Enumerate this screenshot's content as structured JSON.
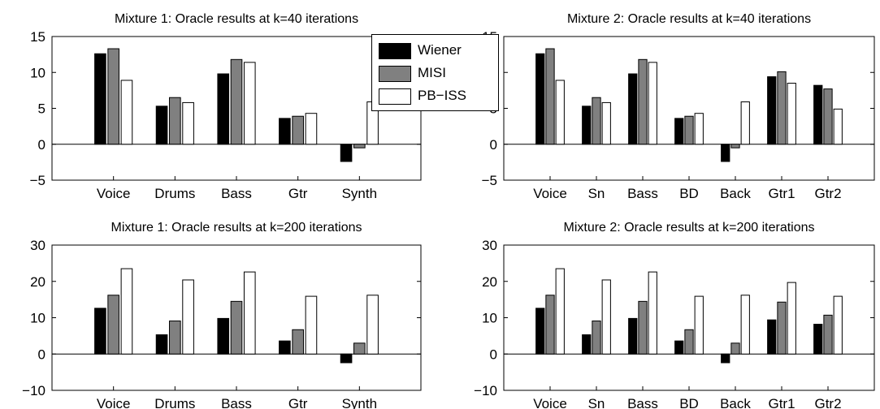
{
  "chart_data": [
    {
      "type": "bar",
      "title": "Mixture 1: Oracle results at k=40 iterations",
      "categories": [
        "Voice",
        "Drums",
        "Bass",
        "Gtr",
        "Synth"
      ],
      "series": [
        {
          "name": "Wiener",
          "values": [
            12.6,
            5.3,
            9.8,
            3.6,
            -2.4
          ]
        },
        {
          "name": "MISI",
          "values": [
            13.3,
            6.5,
            11.8,
            3.9,
            -0.5
          ]
        },
        {
          "name": "PB−ISS",
          "values": [
            8.9,
            5.8,
            11.4,
            4.3,
            5.9
          ]
        }
      ],
      "ylim": [
        -5,
        15
      ],
      "yticks": [
        "−5",
        "0",
        "5",
        "10",
        "15"
      ],
      "xlabel": "",
      "ylabel": ""
    },
    {
      "type": "bar",
      "title": "Mixture 2: Oracle results at k=40 iterations",
      "categories": [
        "Voice",
        "Sn",
        "Bass",
        "BD",
        "Back",
        "Gtr1",
        "Gtr2"
      ],
      "series": [
        {
          "name": "Wiener",
          "values": [
            12.6,
            5.3,
            9.8,
            3.6,
            -2.4,
            9.4,
            8.2
          ]
        },
        {
          "name": "MISI",
          "values": [
            13.3,
            6.5,
            11.8,
            3.9,
            -0.5,
            10.1,
            7.7
          ]
        },
        {
          "name": "PB−ISS",
          "values": [
            8.9,
            5.8,
            11.4,
            4.3,
            5.9,
            8.5,
            4.9
          ]
        }
      ],
      "ylim": [
        -5,
        15
      ],
      "yticks": [
        "−5",
        "0",
        "5",
        "10",
        "15"
      ],
      "xlabel": "",
      "ylabel": ""
    },
    {
      "type": "bar",
      "title": "Mixture 1: Oracle results at k=200 iterations",
      "categories": [
        "Voice",
        "Drums",
        "Bass",
        "Gtr",
        "Synth"
      ],
      "series": [
        {
          "name": "Wiener",
          "values": [
            12.6,
            5.3,
            9.8,
            3.6,
            -2.4
          ]
        },
        {
          "name": "MISI",
          "values": [
            16.2,
            9.1,
            14.5,
            6.7,
            3.0
          ]
        },
        {
          "name": "PB−ISS",
          "values": [
            23.5,
            20.4,
            22.6,
            15.9,
            16.2
          ]
        }
      ],
      "ylim": [
        -10,
        30
      ],
      "yticks": [
        "−10",
        "0",
        "10",
        "20",
        "30"
      ],
      "xlabel": "",
      "ylabel": ""
    },
    {
      "type": "bar",
      "title": "Mixture 2: Oracle results at k=200 iterations",
      "categories": [
        "Voice",
        "Sn",
        "Bass",
        "BD",
        "Back",
        "Gtr1",
        "Gtr2"
      ],
      "series": [
        {
          "name": "Wiener",
          "values": [
            12.6,
            5.3,
            9.8,
            3.6,
            -2.4,
            9.4,
            8.2
          ]
        },
        {
          "name": "MISI",
          "values": [
            16.2,
            9.1,
            14.5,
            6.7,
            3.0,
            14.3,
            10.7
          ]
        },
        {
          "name": "PB−ISS",
          "values": [
            23.5,
            20.4,
            22.6,
            15.9,
            16.2,
            19.7,
            15.9
          ]
        }
      ],
      "ylim": [
        -10,
        30
      ],
      "yticks": [
        "−10",
        "0",
        "10",
        "20",
        "30"
      ],
      "xlabel": "",
      "ylabel": ""
    }
  ],
  "legend": {
    "placement": "top-center",
    "items": [
      {
        "label": "Wiener",
        "color": "#000000"
      },
      {
        "label": "MISI",
        "color": "#808080"
      },
      {
        "label": "PB−ISS",
        "color": "#ffffff"
      }
    ]
  }
}
